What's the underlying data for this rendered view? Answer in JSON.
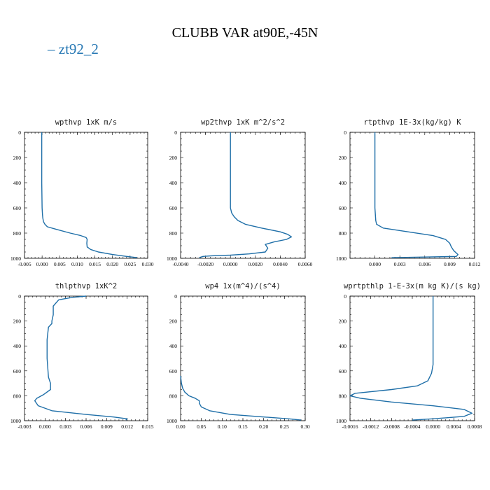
{
  "title": "CLUBB VAR at90E,-45N",
  "legend": "– zt92_2",
  "colors": {
    "line": "#1f6fa8",
    "legend": "#2a7ab5"
  },
  "chart_data": [
    {
      "type": "line",
      "title": "wpthvp  1xK m/s",
      "xlim": [
        -0.005,
        0.03
      ],
      "ylim": [
        0,
        1000
      ],
      "y_inverted": true,
      "xticks": [
        -0.005,
        0.0,
        0.005,
        0.01,
        0.015,
        0.02,
        0.025,
        0.03
      ],
      "xtick_labels": [
        "-0.005",
        "0.000",
        "0.005",
        "0.010",
        "0.015",
        "0.020",
        "0.025",
        "0.030"
      ],
      "yticks": [
        0,
        200,
        400,
        600,
        800,
        1000
      ],
      "series": [
        {
          "x": [
            -0.0001,
            -0.0001,
            -0.0001,
            0.0,
            0.0001,
            0.0002,
            0.0004,
            0.0008,
            0.0015,
            0.004,
            0.008,
            0.011,
            0.0125,
            0.0128,
            0.0127,
            0.0128,
            0.0138,
            0.016,
            0.02,
            0.024,
            0.027
          ],
          "y": [
            0,
            200,
            400,
            600,
            650,
            680,
            710,
            730,
            750,
            770,
            800,
            820,
            835,
            850,
            880,
            910,
            930,
            950,
            970,
            985,
            995
          ]
        }
      ]
    },
    {
      "type": "line",
      "title": "wp2thvp  1xK m^2/s^2",
      "xlim": [
        -0.004,
        0.006
      ],
      "ylim": [
        0,
        1000
      ],
      "y_inverted": true,
      "xticks": [
        -0.004,
        -0.002,
        0.0,
        0.002,
        0.004,
        0.006
      ],
      "xtick_labels": [
        "-0.0040",
        "-0.0020",
        "0.0000",
        "0.0020",
        "0.0040",
        "0.0060"
      ],
      "yticks": [
        0,
        200,
        400,
        600,
        800,
        1000
      ],
      "series": [
        {
          "x": [
            0.0,
            0.0,
            0.0,
            0.0,
            0.0001,
            0.0003,
            0.0006,
            0.0012,
            0.0025,
            0.004,
            0.0046,
            0.0049,
            0.0045,
            0.0035,
            0.0028,
            0.003,
            0.0028,
            0.0015,
            0.0,
            -0.0015,
            -0.0022,
            -0.0025
          ],
          "y": [
            0,
            200,
            400,
            600,
            640,
            670,
            700,
            730,
            760,
            790,
            810,
            830,
            850,
            870,
            890,
            920,
            950,
            965,
            975,
            980,
            985,
            995
          ]
        }
      ]
    },
    {
      "type": "line",
      "title": "rtpthvp  1E-3x(kg/kg) K",
      "xlim": [
        -0.003,
        0.012
      ],
      "ylim": [
        0,
        1000
      ],
      "y_inverted": true,
      "xticks": [
        0.0,
        0.003,
        0.006,
        0.009,
        0.012
      ],
      "xtick_labels": [
        "0.000",
        "0.003",
        "0.006",
        "0.009",
        "0.012"
      ],
      "yticks": [
        0,
        200,
        400,
        600,
        800,
        1000
      ],
      "series": [
        {
          "x": [
            0.0,
            0.0,
            0.0,
            0.0,
            0.0001,
            0.0002,
            0.001,
            0.004,
            0.007,
            0.0085,
            0.009,
            0.0092,
            0.0095,
            0.01,
            0.0098,
            0.006,
            0.002
          ],
          "y": [
            0,
            200,
            400,
            600,
            700,
            730,
            760,
            790,
            820,
            850,
            880,
            910,
            940,
            970,
            985,
            990,
            995
          ]
        }
      ]
    },
    {
      "type": "line",
      "title": "thlpthvp  1xK^2",
      "xlim": [
        -0.003,
        0.015
      ],
      "ylim": [
        0,
        1000
      ],
      "y_inverted": true,
      "xticks": [
        -0.003,
        0.0,
        0.003,
        0.006,
        0.009,
        0.012,
        0.015
      ],
      "xtick_labels": [
        "-0.003",
        "0.000",
        "0.003",
        "0.006",
        "0.009",
        "0.012",
        "0.015"
      ],
      "yticks": [
        0,
        200,
        400,
        600,
        800,
        1000
      ],
      "series": [
        {
          "x": [
            0.006,
            0.004,
            0.002,
            0.0012,
            0.0012,
            0.001,
            0.001,
            0.0005,
            0.0003,
            0.0003,
            0.0005,
            0.0008,
            0.0008,
            -0.0002,
            -0.0012,
            -0.0015,
            -0.001,
            0.001,
            0.006,
            0.01,
            0.012,
            0.0118
          ],
          "y": [
            0,
            10,
            30,
            80,
            150,
            200,
            220,
            250,
            350,
            500,
            650,
            700,
            750,
            790,
            820,
            840,
            880,
            920,
            950,
            970,
            985,
            995
          ]
        }
      ]
    },
    {
      "type": "line",
      "title": "wp4  1x(m^4)/(s^4)",
      "xlim": [
        0.0,
        0.3
      ],
      "ylim": [
        0,
        1000
      ],
      "y_inverted": true,
      "xticks": [
        0.0,
        0.05,
        0.1,
        0.15,
        0.2,
        0.25,
        0.3
      ],
      "xtick_labels": [
        "0.00",
        "0.05",
        "0.10",
        "0.15",
        "0.20",
        "0.25",
        "0.30"
      ],
      "yticks": [
        0,
        200,
        400,
        600,
        800,
        1000
      ],
      "series": [
        {
          "x": [
            0.0,
            0.002,
            0.005,
            0.01,
            0.02,
            0.035,
            0.045,
            0.045,
            0.05,
            0.07,
            0.12,
            0.2,
            0.26,
            0.29
          ],
          "y": [
            640,
            700,
            740,
            770,
            800,
            820,
            840,
            860,
            890,
            920,
            950,
            970,
            985,
            995
          ]
        }
      ]
    },
    {
      "type": "line",
      "title": "wprtpthlp  1-E-3x(m kg K)/(s kg)",
      "xlim": [
        -0.0016,
        0.0008
      ],
      "ylim": [
        0,
        1000
      ],
      "y_inverted": true,
      "xticks": [
        -0.0016,
        -0.0012,
        -0.0008,
        -0.0004,
        0.0,
        0.0004,
        0.0008
      ],
      "xtick_labels": [
        "-0.0016",
        "-0.0012",
        "-0.0008",
        "-0.0004",
        "0.0000",
        "0.0004",
        "0.0008"
      ],
      "yticks": [
        0,
        200,
        400,
        600,
        800,
        1000
      ],
      "series": [
        {
          "x": [
            0.0,
            0.0,
            0.0,
            0.0,
            -3e-05,
            -0.0001,
            -0.0003,
            -0.0008,
            -0.0015,
            -0.0016,
            -0.0014,
            -0.0008,
            0.0,
            0.0006,
            0.00075,
            0.0006,
            0.0,
            -0.0004
          ],
          "y": [
            0,
            200,
            400,
            550,
            620,
            680,
            720,
            750,
            780,
            800,
            820,
            850,
            880,
            910,
            940,
            965,
            985,
            995
          ]
        }
      ]
    }
  ]
}
